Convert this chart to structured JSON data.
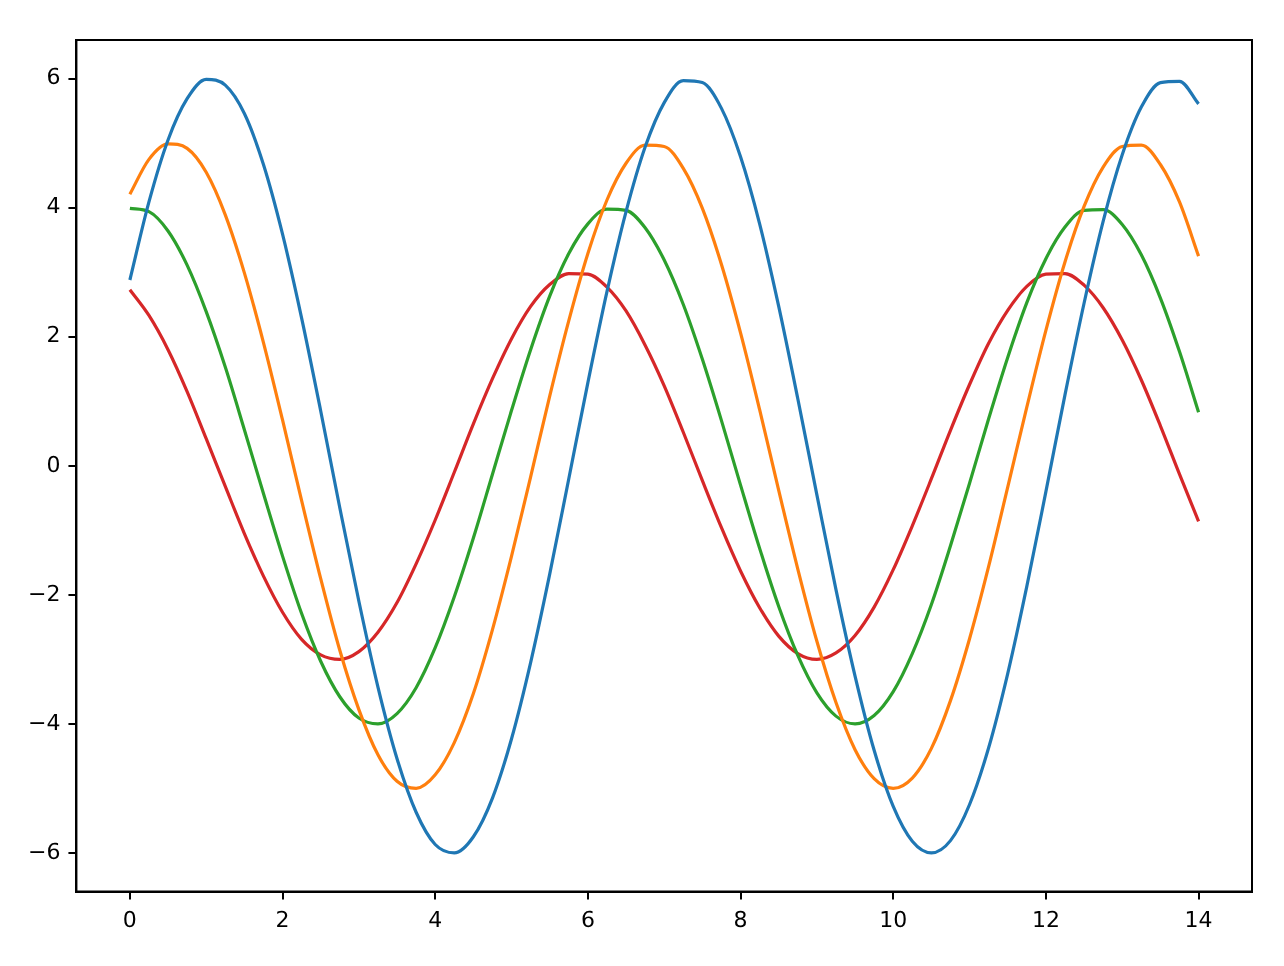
{
  "chart_data": {
    "type": "line",
    "x": [
      0,
      0.25,
      0.5,
      0.75,
      1,
      1.25,
      1.5,
      1.75,
      2,
      2.25,
      2.5,
      2.75,
      3,
      3.25,
      3.5,
      3.75,
      4,
      4.25,
      4.5,
      4.75,
      5,
      5.25,
      5.5,
      5.75,
      6,
      6.25,
      6.5,
      6.75,
      7,
      7.25,
      7.5,
      7.75,
      8,
      8.25,
      8.5,
      8.75,
      9,
      9.25,
      9.5,
      9.75,
      10,
      10.25,
      10.5,
      10.75,
      11,
      11.25,
      11.5,
      11.75,
      12,
      12.25,
      12.5,
      12.75,
      13,
      13.25,
      13.5,
      13.75,
      14
    ],
    "series": [
      {
        "color": "#1f77b4",
        "values": [
          2.88,
          4.09,
          5.05,
          5.69,
          5.99,
          5.9,
          5.46,
          4.67,
          3.59,
          2.29,
          0.85,
          -0.65,
          -2.1,
          -3.43,
          -4.54,
          -5.37,
          -5.87,
          -6.0,
          -5.75,
          -5.15,
          -4.23,
          -3.05,
          -1.68,
          -0.2,
          1.29,
          2.7,
          3.94,
          4.94,
          5.63,
          5.97,
          5.94,
          5.54,
          4.79,
          3.75,
          2.47,
          1.04,
          -0.45,
          -1.92,
          -3.26,
          -4.41,
          -5.28,
          -5.82,
          -6.0,
          -5.81,
          -5.25,
          -4.37,
          -3.22,
          -1.87,
          -0.4,
          1.1,
          2.52,
          3.79,
          4.82,
          5.56,
          5.94,
          5.96,
          5.61
        ]
      },
      {
        "color": "#ff7f0e",
        "values": [
          4.21,
          4.75,
          4.99,
          4.92,
          4.55,
          3.89,
          2.99,
          1.91,
          0.71,
          -0.54,
          -1.75,
          -2.86,
          -3.78,
          -4.48,
          -4.89,
          -5.0,
          -4.79,
          -4.29,
          -3.53,
          -2.54,
          -1.4,
          -0.17,
          1.08,
          2.25,
          3.29,
          4.12,
          4.69,
          4.97,
          4.95,
          4.61,
          3.99,
          3.12,
          2.06,
          0.87,
          -0.38,
          -1.6,
          -2.72,
          -3.67,
          -4.4,
          -4.85,
          -5.0,
          -4.84,
          -4.38,
          -3.64,
          -2.68,
          -1.56,
          -0.33,
          0.91,
          2.1,
          3.16,
          4.02,
          4.63,
          4.95,
          4.97,
          4.67,
          4.09,
          3.25
        ]
      },
      {
        "color": "#2ca02c",
        "values": [
          3.99,
          3.94,
          3.64,
          3.11,
          2.39,
          1.53,
          0.56,
          -0.43,
          -1.4,
          -2.29,
          -3.03,
          -3.58,
          -3.91,
          -4.0,
          -3.84,
          -3.44,
          -2.82,
          -2.03,
          -1.12,
          -0.13,
          0.86,
          1.8,
          2.63,
          3.29,
          3.75,
          3.98,
          3.96,
          3.69,
          3.19,
          2.5,
          1.65,
          0.7,
          -0.3,
          -1.28,
          -2.18,
          -2.94,
          -3.52,
          -3.88,
          -4.0,
          -3.87,
          -3.5,
          -2.91,
          -2.15,
          -1.24,
          -0.27,
          0.73,
          1.68,
          2.53,
          3.21,
          3.7,
          3.96,
          3.97,
          3.74,
          3.27,
          2.6,
          1.77,
          0.83
        ]
      },
      {
        "color": "#d62728",
        "values": [
          2.73,
          2.33,
          1.8,
          1.15,
          0.42,
          -0.32,
          -1.05,
          -1.71,
          -2.27,
          -2.69,
          -2.93,
          -3.0,
          -2.88,
          -2.58,
          -2.12,
          -1.52,
          -0.84,
          -0.1,
          0.65,
          1.35,
          1.97,
          2.47,
          2.81,
          2.98,
          2.97,
          2.77,
          2.4,
          1.87,
          1.24,
          0.52,
          -0.23,
          -0.96,
          -1.63,
          -2.2,
          -2.64,
          -2.91,
          -3.0,
          -2.9,
          -2.63,
          -2.19,
          -1.61,
          -0.93,
          -0.2,
          0.55,
          1.26,
          1.9,
          2.41,
          2.78,
          2.97,
          2.98,
          2.8,
          2.45,
          1.95,
          1.33,
          0.62,
          -0.13,
          -0.86
        ]
      }
    ],
    "xlim": [
      -0.7,
      14.7
    ],
    "xticks": [
      0,
      2,
      4,
      6,
      8,
      10,
      12,
      14
    ],
    "ylim": [
      -6.6,
      6.6
    ],
    "yticks": [
      {
        "value": -6,
        "label": "−6"
      },
      {
        "value": -4,
        "label": "−4"
      },
      {
        "value": -2,
        "label": "−2"
      },
      0,
      2,
      4,
      6
    ],
    "grid": false,
    "legend": false
  }
}
